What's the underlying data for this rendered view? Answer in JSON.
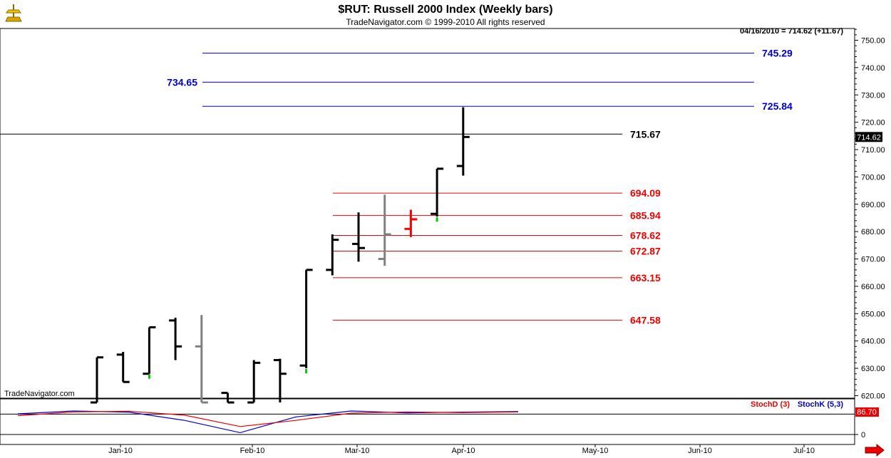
{
  "chart_data": [
    {
      "type": "bar",
      "title": "$RUT:  Russell 2000 Index  (Weekly bars)",
      "subtitle": "TradeNavigator.com © 1999-2010 All rights reserved",
      "watermark": "TradeNavigator.com",
      "last_info": "04/16/2010 = 714.62 (+11.67)",
      "last_price": "714.62",
      "ylim": [
        617.5,
        757
      ],
      "yticks": [
        "750.00",
        "740.00",
        "730.00",
        "720.00",
        "710.00",
        "700.00",
        "690.00",
        "680.00",
        "670.00",
        "660.00",
        "650.00",
        "640.00",
        "630.00",
        "620.00"
      ],
      "x_labels": [
        "Jan-10",
        "Feb-10",
        "Mar-10",
        "Apr-10",
        "May-10",
        "Jun-10",
        "Jul-10"
      ],
      "colors": {
        "up": "#000000",
        "neutral": "#808080",
        "down": "#ff0000",
        "marker": "#00cc00",
        "blue": "#0000cc",
        "red": "#ee0000",
        "black": "#000000"
      },
      "bars": [
        {
          "week": 0,
          "high": 634,
          "low": 617.5,
          "open": 617.5,
          "close": 634,
          "color": "up"
        },
        {
          "week": 1,
          "high": 636,
          "low": 625,
          "open": 635,
          "close": 625,
          "color": "up"
        },
        {
          "week": 2,
          "high": 645,
          "low": 628,
          "open": 628,
          "close": 645,
          "color": "up",
          "marker": "low"
        },
        {
          "week": 3,
          "high": 648.5,
          "low": 633,
          "open": 647.5,
          "close": 638,
          "color": "up"
        },
        {
          "week": 4,
          "high": 649.5,
          "low": 617.5,
          "open": 638,
          "close": 617.5,
          "color": "neutral"
        },
        {
          "week": 5,
          "high": 621,
          "low": 617.5,
          "open": 621,
          "close": 617.5,
          "color": "up"
        },
        {
          "week": 6,
          "high": 633,
          "low": 617.5,
          "open": 617.5,
          "close": 632,
          "color": "up"
        },
        {
          "week": 7,
          "high": 633.5,
          "low": 617.5,
          "open": 633,
          "close": 628,
          "color": "up"
        },
        {
          "week": 8,
          "high": 666,
          "low": 630,
          "open": 631,
          "close": 666,
          "color": "up",
          "marker": "low"
        },
        {
          "week": 9,
          "high": 679,
          "low": 664,
          "open": 666,
          "close": 677,
          "color": "up"
        },
        {
          "week": 10,
          "high": 687,
          "low": 669,
          "open": 675.5,
          "close": 674,
          "color": "up"
        },
        {
          "week": 11,
          "high": 693.5,
          "low": 667.5,
          "open": 670,
          "close": 679,
          "color": "neutral"
        },
        {
          "week": 12,
          "high": 688,
          "low": 678,
          "open": 681,
          "close": 684.5,
          "color": "down"
        },
        {
          "week": 13,
          "high": 703,
          "low": 685.5,
          "open": 686.5,
          "close": 703,
          "color": "up",
          "marker": "low"
        },
        {
          "week": 14,
          "high": 725.5,
          "low": 700.5,
          "open": 704,
          "close": 714.62,
          "color": "up"
        }
      ],
      "levels": [
        {
          "value": 745.29,
          "label": "745.29",
          "color": "blue",
          "label_side": "right"
        },
        {
          "value": 734.65,
          "label": "734.65",
          "color": "blue",
          "label_side": "left"
        },
        {
          "value": 725.84,
          "label": "725.84",
          "color": "blue",
          "label_side": "right"
        },
        {
          "value": 715.67,
          "label": "715.67",
          "color": "black",
          "label_side": "right"
        },
        {
          "value": 694.09,
          "label": "694.09",
          "color": "red",
          "label_side": "right"
        },
        {
          "value": 685.94,
          "label": "685.94",
          "color": "red",
          "label_side": "right"
        },
        {
          "value": 678.62,
          "label": "678.62",
          "color": "red",
          "label_side": "right"
        },
        {
          "value": 672.87,
          "label": "672.87",
          "color": "red",
          "label_side": "right"
        },
        {
          "value": 663.15,
          "label": "663.15",
          "color": "red",
          "label_side": "right"
        },
        {
          "value": 647.58,
          "label": "647.58",
          "color": "red",
          "label_side": "right"
        }
      ]
    },
    {
      "type": "line",
      "title": "",
      "ylim": [
        0,
        100
      ],
      "yticks": [
        "0"
      ],
      "reference_line": 86.7,
      "last_value": "86.70",
      "legend": [
        {
          "name": "StochD (3)",
          "color": "#ee0000"
        },
        {
          "name": "StochK (5,3)",
          "color": "#0000cc"
        }
      ],
      "series": [
        {
          "name": "StochK (5,3)",
          "color": "#0000cc",
          "values": [
            88,
            100,
            95,
            60,
            8,
            75,
            100,
            92,
            95,
            98
          ]
        },
        {
          "name": "StochD (3)",
          "color": "#ee0000",
          "values": [
            80,
            96,
            99,
            82,
            34,
            60,
            91,
            96,
            93,
            96
          ]
        }
      ]
    }
  ]
}
